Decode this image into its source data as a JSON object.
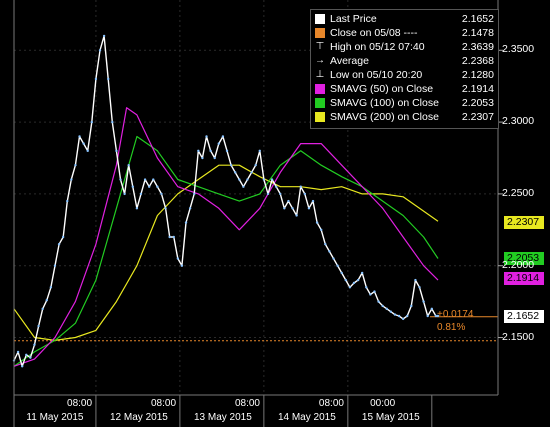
{
  "legend": [
    {
      "icon": "white-square-icon",
      "color": "#ffffff",
      "label": "Last Price",
      "value": "2.1652"
    },
    {
      "icon": "orange-square-icon",
      "color": "#e8872a",
      "label": "Close on 05/08 ----",
      "value": "2.1478"
    },
    {
      "icon": "high-marker-icon",
      "color": "#ffffff",
      "label": "High on 05/12 07:40",
      "value": "2.3639"
    },
    {
      "icon": "average-marker-icon",
      "color": "#ffffff",
      "label": "Average",
      "value": "2.2368"
    },
    {
      "icon": "low-marker-icon",
      "color": "#ffffff",
      "label": "Low on 05/10 20:20",
      "value": "2.1280"
    },
    {
      "icon": "magenta-square-icon",
      "color": "#e020e0",
      "label": "SMAVG (50) on Close",
      "value": "2.1914"
    },
    {
      "icon": "green-square-icon",
      "color": "#22cc22",
      "label": "SMAVG (100) on Close",
      "value": "2.2053"
    },
    {
      "icon": "yellow-square-icon",
      "color": "#e8e820",
      "label": "SMAVG (200) on Close",
      "value": "2.2307"
    }
  ],
  "tags": [
    {
      "value": "2.2307",
      "bg": "#e8e820",
      "fg": "#000000"
    },
    {
      "value": "2.2053",
      "bg": "#22cc22",
      "fg": "#000000"
    },
    {
      "value": "2.1914",
      "bg": "#e020e0",
      "fg": "#000000"
    },
    {
      "value": "2.1652",
      "bg": "#ffffff",
      "fg": "#000000"
    }
  ],
  "annotations": {
    "change": "+0.0174",
    "change_pct": "0.81%"
  },
  "chart_data": {
    "type": "line",
    "y_ticks": [
      "2.3500",
      "2.3000",
      "2.2500",
      "2.2000",
      "2.1500"
    ],
    "ylim": [
      2.11,
      2.385
    ],
    "x_time_labels": [
      "08:00",
      "08:00",
      "08:00",
      "08:00",
      "00:00"
    ],
    "x_date_labels": [
      "11 May 2015",
      "12 May 2015",
      "13 May 2015",
      "14 May 2015",
      "15 May 2015"
    ],
    "reference_line": {
      "label": "Close on 05/08",
      "value": 2.1478
    },
    "grid": true,
    "series": [
      {
        "name": "Last Price",
        "color": "#ffffff",
        "x": [
          0,
          2,
          4,
          6,
          8,
          10,
          12,
          14,
          16,
          18,
          20,
          22,
          24,
          26,
          28,
          30,
          32,
          34,
          36,
          38,
          40,
          42,
          44,
          46,
          48,
          50,
          52,
          54,
          56,
          58,
          60,
          62,
          64,
          66,
          68,
          70,
          72,
          74,
          76,
          78,
          80,
          82,
          84,
          86,
          88,
          90,
          92,
          94,
          96,
          98,
          100,
          102,
          104,
          106,
          108,
          110,
          112,
          114,
          116,
          118,
          120,
          122,
          124,
          126,
          128,
          130,
          132,
          134,
          136,
          138,
          140,
          142,
          144,
          146,
          148,
          150,
          152,
          154,
          156,
          158,
          160,
          162,
          164,
          166,
          168,
          170,
          172,
          174,
          176,
          178,
          180,
          182,
          184,
          186,
          188,
          190,
          192,
          194,
          196,
          198,
          200,
          202,
          204,
          206,
          207
        ],
        "values": [
          2.134,
          2.14,
          2.13,
          2.138,
          2.136,
          2.145,
          2.158,
          2.17,
          2.176,
          2.185,
          2.2,
          2.215,
          2.22,
          2.245,
          2.26,
          2.27,
          2.29,
          2.285,
          2.28,
          2.3,
          2.33,
          2.35,
          2.36,
          2.33,
          2.3,
          2.28,
          2.26,
          2.25,
          2.27,
          2.255,
          2.24,
          2.25,
          2.26,
          2.255,
          2.26,
          2.255,
          2.25,
          2.24,
          2.22,
          2.22,
          2.205,
          2.2,
          2.23,
          2.24,
          2.25,
          2.28,
          2.275,
          2.29,
          2.28,
          2.275,
          2.285,
          2.29,
          2.28,
          2.27,
          2.265,
          2.26,
          2.255,
          2.26,
          2.265,
          2.27,
          2.28,
          2.26,
          2.25,
          2.26,
          2.255,
          2.25,
          2.24,
          2.245,
          2.24,
          2.235,
          2.255,
          2.25,
          2.24,
          2.245,
          2.23,
          2.225,
          2.215,
          2.21,
          2.205,
          2.2,
          2.195,
          2.19,
          2.185,
          2.188,
          2.19,
          2.195,
          2.185,
          2.18,
          2.182,
          2.175,
          2.172,
          2.17,
          2.168,
          2.166,
          2.165,
          2.163,
          2.165,
          2.172,
          2.19,
          2.185,
          2.175,
          2.165,
          2.17,
          2.165,
          2.165
        ]
      },
      {
        "name": "SMAVG (50) on Close",
        "color": "#e020e0",
        "x": [
          0,
          10,
          20,
          30,
          40,
          50,
          55,
          60,
          70,
          80,
          90,
          100,
          110,
          120,
          130,
          140,
          150,
          160,
          170,
          180,
          190,
          200,
          207
        ],
        "values": [
          2.13,
          2.135,
          2.15,
          2.175,
          2.215,
          2.27,
          2.31,
          2.305,
          2.275,
          2.255,
          2.25,
          2.24,
          2.225,
          2.24,
          2.265,
          2.285,
          2.285,
          2.27,
          2.255,
          2.24,
          2.22,
          2.2,
          2.19
        ]
      },
      {
        "name": "SMAVG (100) on Close",
        "color": "#22cc22",
        "x": [
          0,
          10,
          20,
          30,
          40,
          50,
          60,
          70,
          80,
          90,
          100,
          110,
          120,
          130,
          140,
          150,
          160,
          170,
          180,
          190,
          200,
          207
        ],
        "values": [
          2.13,
          2.14,
          2.148,
          2.16,
          2.19,
          2.24,
          2.29,
          2.28,
          2.26,
          2.255,
          2.25,
          2.245,
          2.25,
          2.27,
          2.28,
          2.27,
          2.262,
          2.255,
          2.245,
          2.235,
          2.22,
          2.205
        ]
      },
      {
        "name": "SMAVG (200) on Close",
        "color": "#e8e820",
        "x": [
          0,
          10,
          20,
          30,
          40,
          50,
          60,
          70,
          80,
          90,
          100,
          110,
          120,
          130,
          140,
          150,
          160,
          170,
          180,
          190,
          200,
          207
        ],
        "values": [
          2.17,
          2.15,
          2.148,
          2.15,
          2.155,
          2.175,
          2.2,
          2.235,
          2.25,
          2.26,
          2.27,
          2.27,
          2.262,
          2.255,
          2.255,
          2.253,
          2.255,
          2.25,
          2.25,
          2.248,
          2.238,
          2.231
        ]
      }
    ]
  }
}
